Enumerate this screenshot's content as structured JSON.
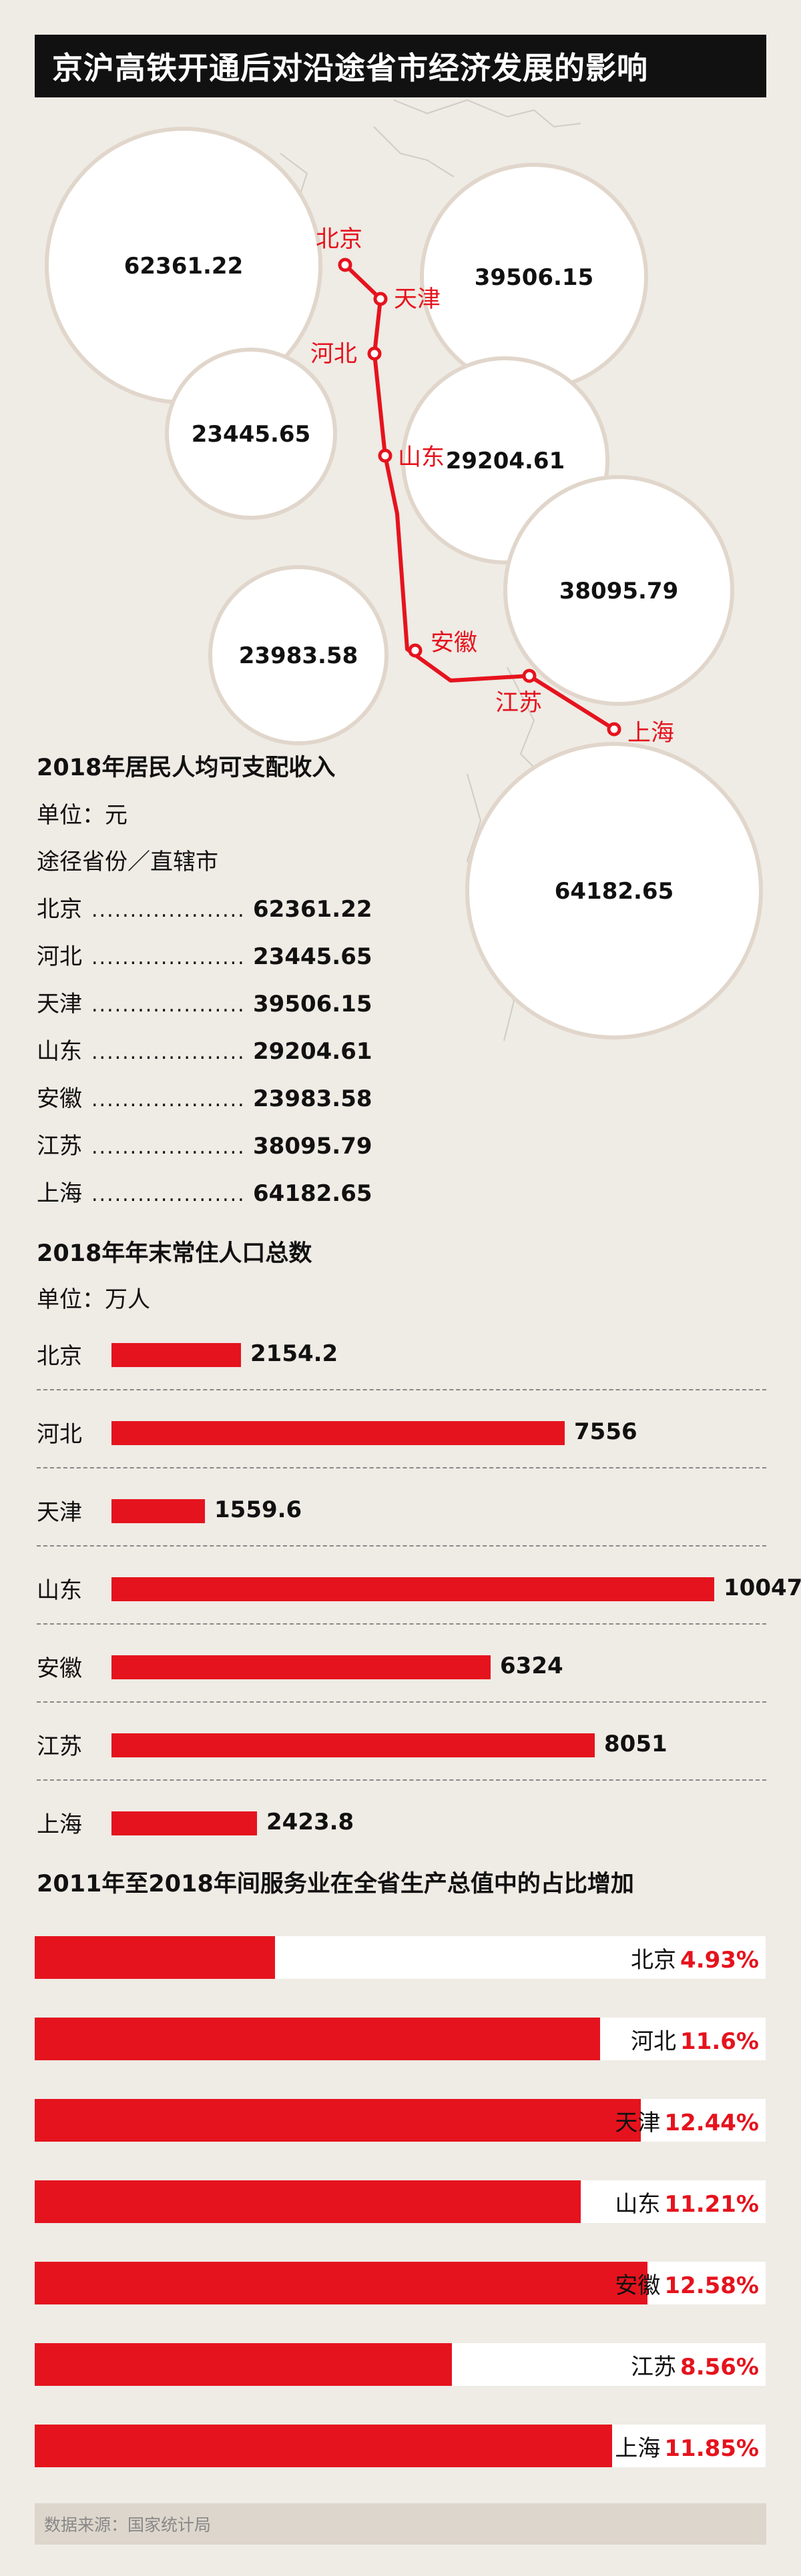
{
  "title": "京沪高铁开通后对沿途省市经济发展的影响",
  "colors": {
    "accent": "#e5131d",
    "background": "#efebe5",
    "bubble_stroke": "#e1d6cb"
  },
  "map": {
    "stations": [
      {
        "name": "北京",
        "value": "62361.22"
      },
      {
        "name": "天津",
        "value": "39506.15"
      },
      {
        "name": "河北",
        "value": "23445.65"
      },
      {
        "name": "山东",
        "value": "29204.61"
      },
      {
        "name": "安徽",
        "value": "23983.58"
      },
      {
        "name": "江苏",
        "value": "38095.79"
      },
      {
        "name": "上海",
        "value": "64182.65"
      }
    ]
  },
  "income": {
    "title": "2018年居民人均可支配收入",
    "unit": "单位：元",
    "subtitle": "途径省份／直辖市",
    "dots": "...........................",
    "rows": [
      {
        "province": "北京",
        "value": "62361.22"
      },
      {
        "province": "河北",
        "value": "23445.65"
      },
      {
        "province": "天津",
        "value": "39506.15"
      },
      {
        "province": "山东",
        "value": "29204.61"
      },
      {
        "province": "安徽",
        "value": "23983.58"
      },
      {
        "province": "江苏",
        "value": "38095.79"
      },
      {
        "province": "上海",
        "value": "64182.65"
      }
    ]
  },
  "population": {
    "title": "2018年年末常住人口总数",
    "unit": "单位：万人",
    "rows": [
      {
        "province": "北京",
        "value": "2154.2"
      },
      {
        "province": "河北",
        "value": "7556"
      },
      {
        "province": "天津",
        "value": "1559.6"
      },
      {
        "province": "山东",
        "value": "10047"
      },
      {
        "province": "安徽",
        "value": "6324"
      },
      {
        "province": "江苏",
        "value": "8051"
      },
      {
        "province": "上海",
        "value": "2423.8"
      }
    ]
  },
  "services": {
    "title": "2011年至2018年间服务业在全省生产总值中的占比增加",
    "rows": [
      {
        "province": "北京",
        "value": "4.93%"
      },
      {
        "province": "河北",
        "value": "11.6%"
      },
      {
        "province": "天津",
        "value": "12.44%"
      },
      {
        "province": "山东",
        "value": "11.21%"
      },
      {
        "province": "安徽",
        "value": "12.58%"
      },
      {
        "province": "江苏",
        "value": "8.56%"
      },
      {
        "province": "上海",
        "value": "11.85%"
      }
    ]
  },
  "source": "数据来源：国家统计局",
  "chart_data": [
    {
      "type": "bubble",
      "title": "2018年居民人均可支配收入",
      "unit": "元",
      "categories": [
        "北京",
        "河北",
        "天津",
        "山东",
        "安徽",
        "江苏",
        "上海"
      ],
      "values": [
        62361.22,
        23445.65,
        39506.15,
        29204.61,
        23983.58,
        38095.79,
        64182.65
      ]
    },
    {
      "type": "bar",
      "title": "2018年年末常住人口总数",
      "unit": "万人",
      "categories": [
        "北京",
        "河北",
        "天津",
        "山东",
        "安徽",
        "江苏",
        "上海"
      ],
      "values": [
        2154.2,
        7556,
        1559.6,
        10047,
        6324,
        8051,
        2423.8
      ],
      "xlim": [
        0,
        10047
      ]
    },
    {
      "type": "bar",
      "title": "2011年至2018年间服务业在全省生产总值中的占比增加",
      "unit": "%",
      "categories": [
        "北京",
        "河北",
        "天津",
        "山东",
        "安徽",
        "江苏",
        "上海"
      ],
      "values": [
        4.93,
        11.6,
        12.44,
        11.21,
        12.58,
        8.56,
        11.85
      ],
      "xlim": [
        0,
        15
      ]
    }
  ]
}
